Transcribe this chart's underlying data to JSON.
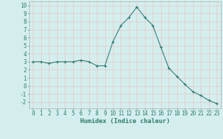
{
  "x": [
    0,
    1,
    2,
    3,
    4,
    5,
    6,
    7,
    8,
    9,
    10,
    11,
    12,
    13,
    14,
    15,
    16,
    17,
    18,
    19,
    20,
    21,
    22,
    23
  ],
  "y": [
    3.0,
    3.0,
    2.8,
    3.0,
    3.0,
    3.0,
    3.2,
    3.0,
    2.5,
    2.5,
    5.5,
    7.5,
    8.5,
    9.8,
    8.5,
    7.5,
    4.8,
    2.2,
    1.2,
    0.2,
    -0.7,
    -1.2,
    -1.8,
    -2.2
  ],
  "line_color": "#2d7a6e",
  "marker": "+",
  "marker_size": 3,
  "xlabel": "Humidex (Indice chaleur)",
  "ylim": [
    -2.8,
    10.5
  ],
  "xlim": [
    -0.5,
    23.5
  ],
  "yticks": [
    -2,
    -1,
    0,
    1,
    2,
    3,
    4,
    5,
    6,
    7,
    8,
    9,
    10
  ],
  "xticks": [
    0,
    1,
    2,
    3,
    4,
    5,
    6,
    7,
    8,
    9,
    10,
    11,
    12,
    13,
    14,
    15,
    16,
    17,
    18,
    19,
    20,
    21,
    22,
    23
  ],
  "bg_color": "#d4eeee",
  "grid_color": "#e8c8c8",
  "tick_fontsize": 5.5,
  "xlabel_fontsize": 6.5
}
